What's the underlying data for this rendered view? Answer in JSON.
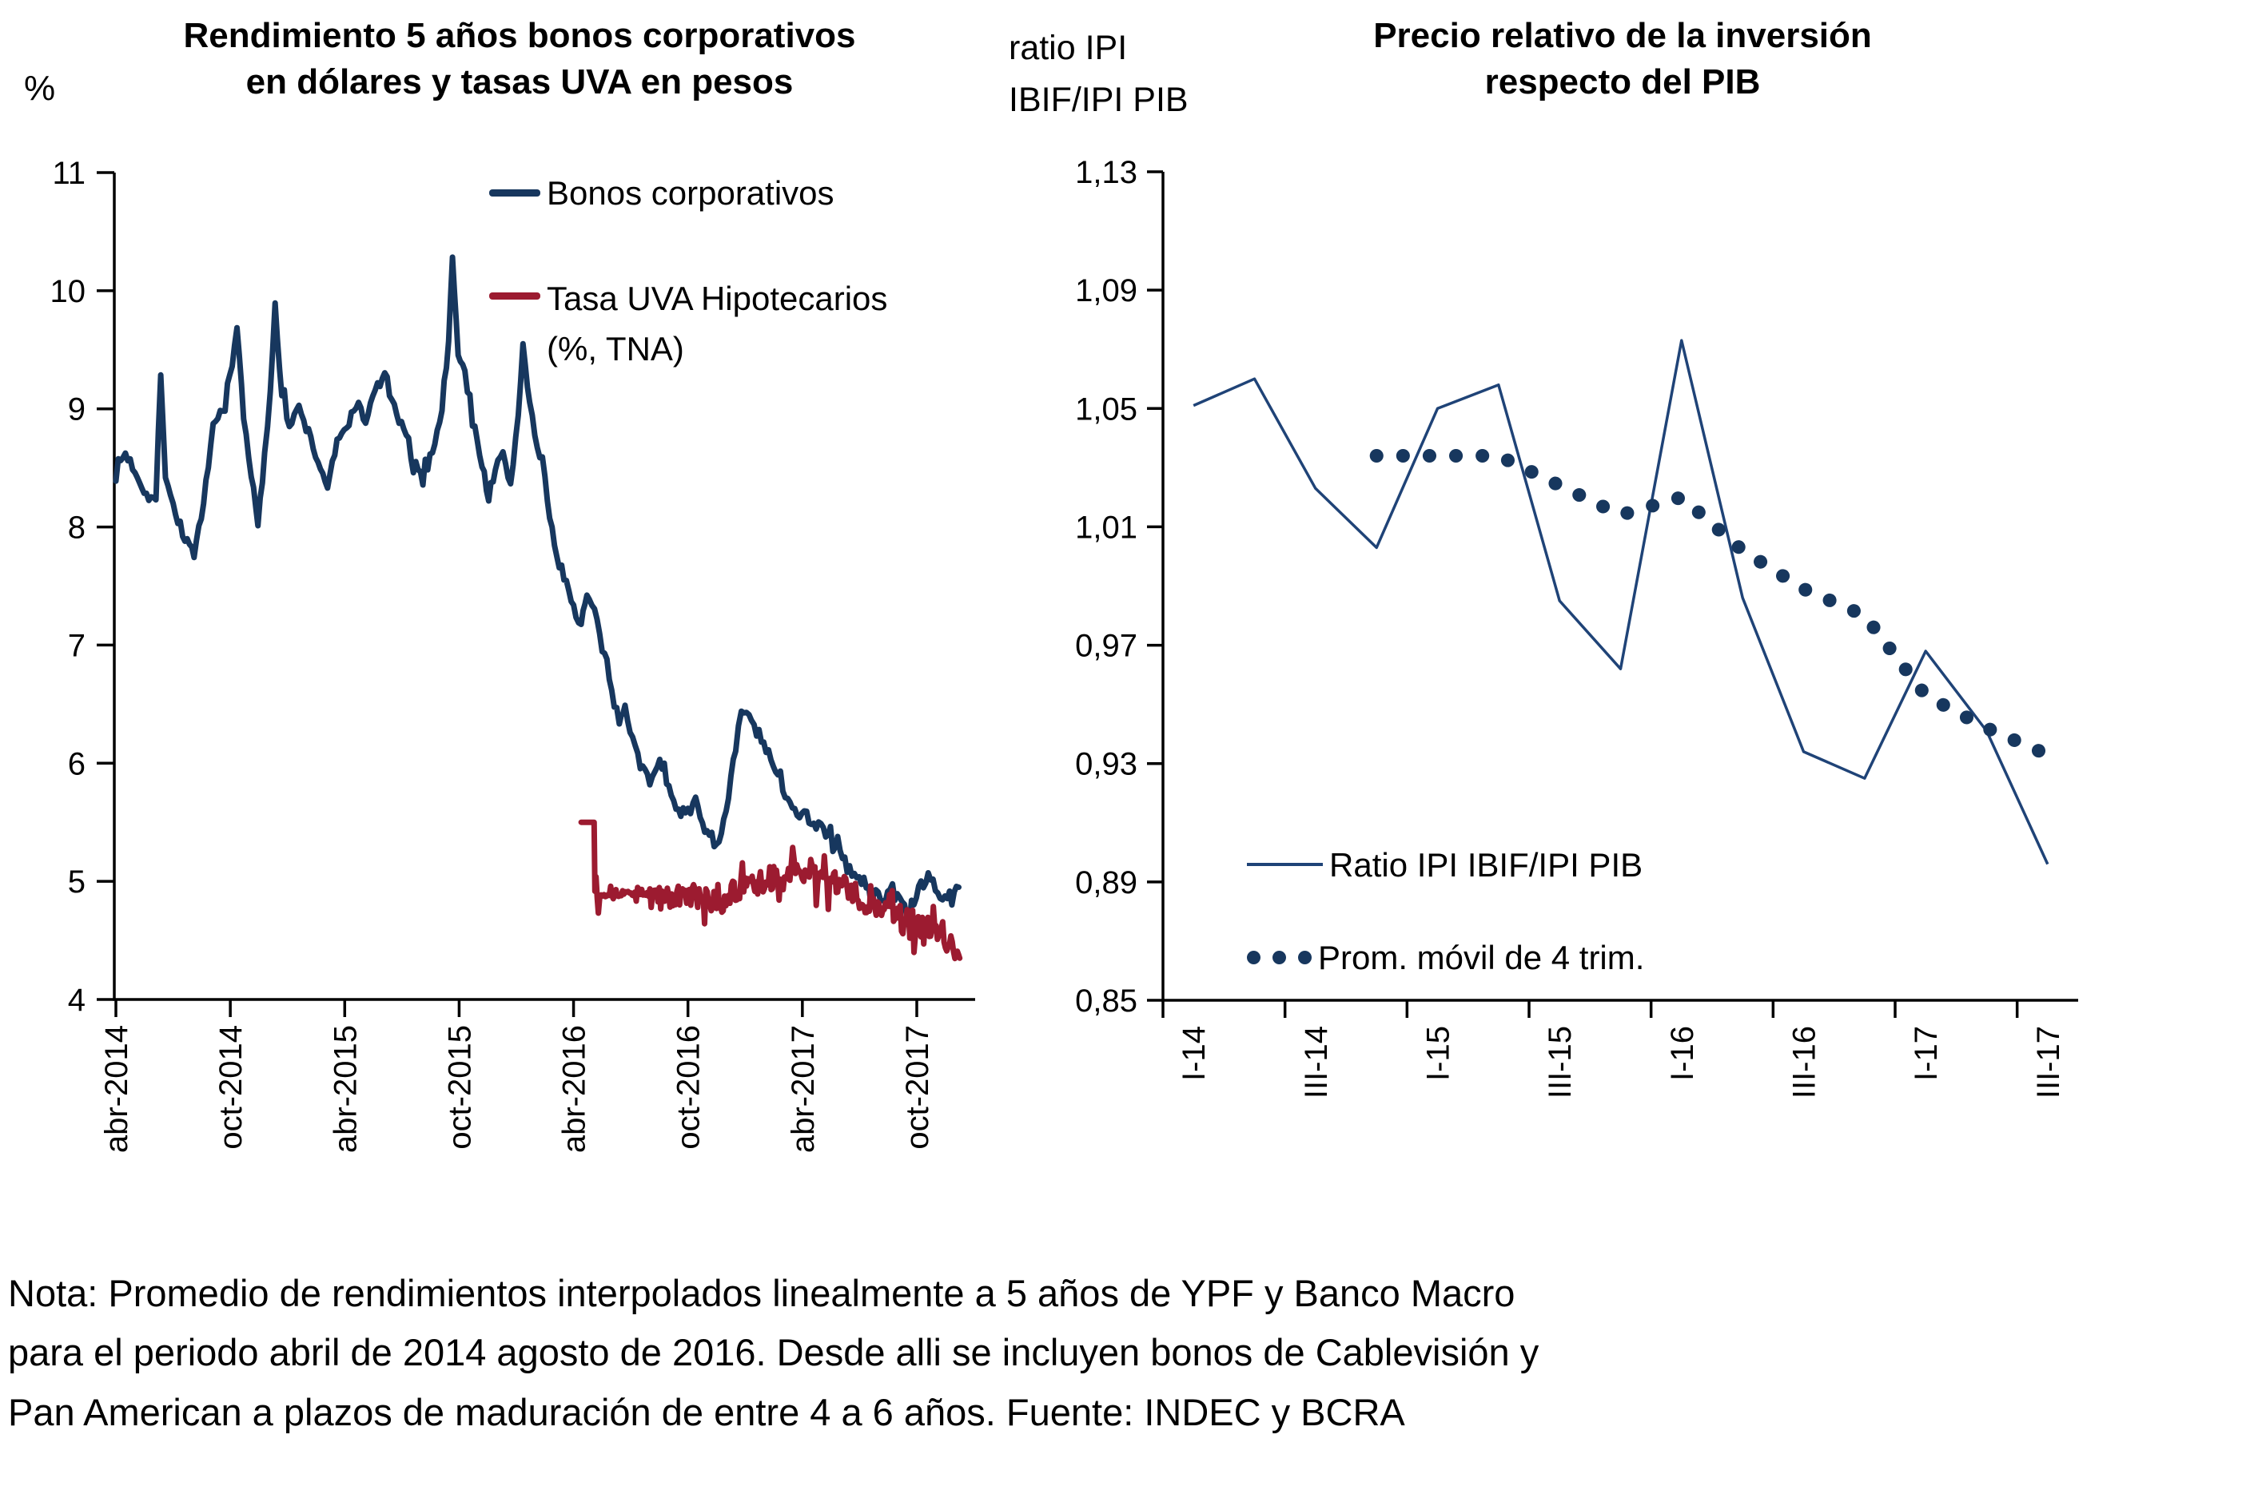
{
  "left_chart": {
    "y_axis_label": "%",
    "title_lines": [
      "Rendimiento 5 años bonos corporativos",
      "en dólares y tasas UVA en pesos"
    ],
    "legend": [
      {
        "label_lines": [
          "Bonos corporativos"
        ]
      },
      {
        "label_lines": [
          "Tasa UVA Hipotecarios",
          "(%, TNA)"
        ]
      }
    ]
  },
  "right_chart": {
    "y_axis_label_lines": [
      "ratio IPI",
      "IBIF/IPI PIB"
    ],
    "title_lines": [
      "Precio relativo de la inversión",
      "respecto del PIB"
    ],
    "legend": [
      {
        "label": "Ratio IPI IBIF/IPI PIB",
        "swatch": "line"
      },
      {
        "label": "Prom. móvil de 4 trim.",
        "swatch": "dots"
      }
    ]
  },
  "note": {
    "lines": [
      "Nota: Promedio de rendimientos interpolados linealmente a 5 años de YPF y Banco Macro",
      "para el periodo abril de 2014 agosto de 2016. Desde alli se incluyen bonos de Cablevisión y",
      "Pan American a plazos de maduración de entre 4 a 6 años. Fuente: INDEC y BCRA"
    ]
  },
  "colors": {
    "navy": "#17375E",
    "red": "#9C1B30",
    "ratio_line": "#1F4377",
    "dots": "#17375E",
    "axis": "#000000"
  },
  "chart_data": [
    {
      "type": "line",
      "title": "Rendimiento 5 años bonos corporativos en dólares y tasas UVA en pesos",
      "xlabel": "",
      "ylabel": "%",
      "ylim": [
        4,
        11
      ],
      "ytick_step": 1,
      "y_tick_labels": [
        "11",
        "10",
        "9",
        "8",
        "7",
        "6",
        "5",
        "4"
      ],
      "x_axis": {
        "unit": "months since abr-2014",
        "start": "abr-2014",
        "end": "dic-2017",
        "tick_months": [
          0,
          6,
          12,
          18,
          24,
          30,
          36,
          42
        ],
        "tick_labels": [
          "abr-2014",
          "oct-2014",
          "abr-2015",
          "oct-2015",
          "abr-2016",
          "oct-2016",
          "abr-2017",
          "oct-2017"
        ]
      },
      "legend_position": "top-right-inside",
      "grid": false,
      "series": [
        {
          "name": "Bonos corporativos",
          "style": "solid-noisy-daily",
          "color_key": "navy",
          "anchors_m_v_noise": [
            [
              0,
              8.5,
              0.05
            ],
            [
              0.5,
              8.62,
              0.05
            ],
            [
              1,
              8.48,
              0.05
            ],
            [
              1.6,
              8.28,
              0.05
            ],
            [
              2.1,
              8.22,
              0.04
            ],
            [
              2.35,
              9.3,
              0.02
            ],
            [
              2.6,
              8.45,
              0.04
            ],
            [
              3,
              8.18,
              0.05
            ],
            [
              3.5,
              7.95,
              0.05
            ],
            [
              4.1,
              7.78,
              0.05
            ],
            [
              4.6,
              8.15,
              0.05
            ],
            [
              5.1,
              8.85,
              0.05
            ],
            [
              5.6,
              9.0,
              0.05
            ],
            [
              6.1,
              9.35,
              0.04
            ],
            [
              6.35,
              9.7,
              0.03
            ],
            [
              6.7,
              8.95,
              0.05
            ],
            [
              7.1,
              8.45,
              0.05
            ],
            [
              7.45,
              8.0,
              0.05
            ],
            [
              7.8,
              8.6,
              0.05
            ],
            [
              8.1,
              9.15,
              0.04
            ],
            [
              8.35,
              9.9,
              0.03
            ],
            [
              8.7,
              9.15,
              0.05
            ],
            [
              9.1,
              8.85,
              0.05
            ],
            [
              9.6,
              9.0,
              0.05
            ],
            [
              10.1,
              8.8,
              0.05
            ],
            [
              10.6,
              8.55,
              0.05
            ],
            [
              11.1,
              8.35,
              0.05
            ],
            [
              11.6,
              8.7,
              0.05
            ],
            [
              12.1,
              8.85,
              0.05
            ],
            [
              12.6,
              9.05,
              0.05
            ],
            [
              13.1,
              8.9,
              0.05
            ],
            [
              13.6,
              9.15,
              0.05
            ],
            [
              14.1,
              9.3,
              0.05
            ],
            [
              14.6,
              9.0,
              0.05
            ],
            [
              15.1,
              8.8,
              0.05
            ],
            [
              15.6,
              8.55,
              0.05
            ],
            [
              16.1,
              8.4,
              0.05
            ],
            [
              16.6,
              8.65,
              0.05
            ],
            [
              17.1,
              9.0,
              0.04
            ],
            [
              17.45,
              9.55,
              0.03
            ],
            [
              17.65,
              10.3,
              0.02
            ],
            [
              17.95,
              9.45,
              0.04
            ],
            [
              18.3,
              9.3,
              0.05
            ],
            [
              18.7,
              8.9,
              0.05
            ],
            [
              19.2,
              8.55,
              0.05
            ],
            [
              19.55,
              8.25,
              0.05
            ],
            [
              19.9,
              8.5,
              0.05
            ],
            [
              20.3,
              8.6,
              0.05
            ],
            [
              20.7,
              8.35,
              0.05
            ],
            [
              21.1,
              8.95,
              0.04
            ],
            [
              21.35,
              9.55,
              0.03
            ],
            [
              21.7,
              9.05,
              0.05
            ],
            [
              22.1,
              8.65,
              0.05
            ],
            [
              22.5,
              8.4,
              0.05
            ],
            [
              23,
              7.8,
              0.05
            ],
            [
              23.5,
              7.6,
              0.05
            ],
            [
              24,
              7.32,
              0.05
            ],
            [
              24.4,
              7.18,
              0.05
            ],
            [
              24.7,
              7.42,
              0.05
            ],
            [
              25.1,
              7.28,
              0.05
            ],
            [
              25.5,
              6.98,
              0.05
            ],
            [
              26,
              6.58,
              0.06
            ],
            [
              26.4,
              6.38,
              0.06
            ],
            [
              26.7,
              6.52,
              0.06
            ],
            [
              27.1,
              6.22,
              0.06
            ],
            [
              27.5,
              5.97,
              0.06
            ],
            [
              28,
              5.87,
              0.06
            ],
            [
              28.4,
              6.02,
              0.06
            ],
            [
              29,
              5.82,
              0.06
            ],
            [
              29.5,
              5.62,
              0.06
            ],
            [
              30,
              5.56,
              0.06
            ],
            [
              30.4,
              5.66,
              0.06
            ],
            [
              31,
              5.42,
              0.06
            ],
            [
              31.5,
              5.32,
              0.05
            ],
            [
              32,
              5.56,
              0.06
            ],
            [
              32.5,
              6.12,
              0.06
            ],
            [
              32.8,
              6.45,
              0.05
            ],
            [
              33.2,
              6.38,
              0.06
            ],
            [
              33.6,
              6.28,
              0.06
            ],
            [
              34.1,
              6.1,
              0.06
            ],
            [
              34.6,
              5.92,
              0.06
            ],
            [
              35.1,
              5.76,
              0.06
            ],
            [
              35.6,
              5.62,
              0.06
            ],
            [
              36.1,
              5.56,
              0.06
            ],
            [
              36.6,
              5.5,
              0.06
            ],
            [
              37.1,
              5.46,
              0.06
            ],
            [
              37.6,
              5.32,
              0.06
            ],
            [
              38.1,
              5.2,
              0.06
            ],
            [
              38.6,
              5.06,
              0.06
            ],
            [
              39.1,
              5.0,
              0.06
            ],
            [
              39.6,
              4.92,
              0.06
            ],
            [
              40.1,
              4.86,
              0.06
            ],
            [
              40.6,
              4.96,
              0.06
            ],
            [
              41.1,
              4.82,
              0.06
            ],
            [
              41.6,
              4.72,
              0.05
            ],
            [
              42.1,
              4.94,
              0.05
            ],
            [
              42.6,
              5.0,
              0.05
            ],
            [
              43.1,
              4.9,
              0.05
            ],
            [
              43.6,
              4.86,
              0.05
            ],
            [
              44.2,
              4.95,
              0.03
            ]
          ]
        },
        {
          "name": "Tasa UVA Hipotecarios (%, TNA)",
          "style": "solid-noisy-daily",
          "color_key": "red",
          "anchors_m_v_noise": [
            [
              24.4,
              5.5,
              0
            ],
            [
              25.08,
              5.5,
              0
            ],
            [
              25.12,
              5.02,
              0.14
            ],
            [
              25.3,
              4.9,
              0.08
            ],
            [
              25.6,
              4.9,
              0.03
            ],
            [
              26.5,
              4.9,
              0.03
            ],
            [
              27.5,
              4.9,
              0.04
            ],
            [
              28.5,
              4.88,
              0.06
            ],
            [
              29.2,
              4.86,
              0.09
            ],
            [
              30,
              4.88,
              0.1
            ],
            [
              30.8,
              4.84,
              0.11
            ],
            [
              31.5,
              4.8,
              0.11
            ],
            [
              32.2,
              4.9,
              0.1
            ],
            [
              33,
              4.95,
              0.1
            ],
            [
              33.8,
              4.98,
              0.11
            ],
            [
              34.5,
              5.02,
              0.12
            ],
            [
              35.2,
              5.06,
              0.12
            ],
            [
              36,
              5.08,
              0.13
            ],
            [
              36.8,
              5.06,
              0.12
            ],
            [
              37.5,
              5.02,
              0.12
            ],
            [
              38.2,
              4.95,
              0.1
            ],
            [
              39,
              4.86,
              0.11
            ],
            [
              39.8,
              4.8,
              0.12
            ],
            [
              40.5,
              4.74,
              0.12
            ],
            [
              41.2,
              4.68,
              0.12
            ],
            [
              42,
              4.62,
              0.13
            ],
            [
              42.8,
              4.56,
              0.13
            ],
            [
              43.5,
              4.5,
              0.12
            ],
            [
              44,
              4.42,
              0.1
            ],
            [
              44.25,
              4.35,
              0.04
            ]
          ]
        }
      ]
    },
    {
      "type": "line",
      "title": "Precio relativo de la inversión respecto del PIB",
      "xlabel": "",
      "ylabel": "ratio IPI IBIF/IPI PIB",
      "ylim": [
        0.85,
        1.13
      ],
      "ytick_step": 0.04,
      "y_tick_labels": [
        "1,13",
        "1,09",
        "1,05",
        "1,01",
        "0,97",
        "0,93",
        "0,89",
        "0,85"
      ],
      "categories": [
        "I-14",
        "II-14",
        "III-14",
        "IV-14",
        "I-15",
        "II-15",
        "III-15",
        "IV-15",
        "I-16",
        "II-16",
        "III-16",
        "IV-16",
        "I-17",
        "II-17",
        "III-17"
      ],
      "x_tick_labels": [
        "I-14",
        "III-14",
        "I-15",
        "III-15",
        "I-16",
        "III-16",
        "I-17",
        "III-17"
      ],
      "legend_position": "bottom-left-inside",
      "grid": false,
      "series": [
        {
          "name": "Ratio IPI IBIF/IPI PIB",
          "style": "thin-solid",
          "color_key": "ratio_line",
          "values": [
            1.051,
            1.06,
            1.023,
            1.003,
            1.05,
            1.058,
            0.985,
            0.962,
            1.073,
            0.986,
            0.934,
            0.925,
            0.968,
            0.941,
            0.896
          ]
        },
        {
          "name": "Prom. móvil de 4 trim.",
          "style": "dotted",
          "color_key": "dots",
          "values": [
            null,
            null,
            null,
            1.034,
            1.034,
            1.034,
            1.024,
            1.014,
            1.02,
            1.002,
            0.989,
            0.98,
            0.953,
            0.942,
            0.933
          ]
        }
      ]
    }
  ]
}
